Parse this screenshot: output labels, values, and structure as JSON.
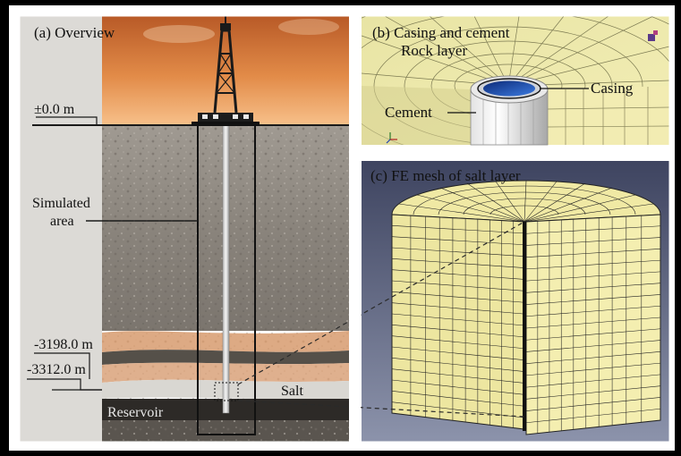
{
  "panels": {
    "a": {
      "title": "(a)  Overview",
      "depth_top": "±0.0 m",
      "simulated_area": [
        "Simulated",
        "area"
      ],
      "depth_salt_top": "-3198.0 m",
      "depth_salt_bottom": "-3312.0 m",
      "salt": "Salt",
      "reservoir": "Reservoir"
    },
    "b": {
      "title": "(b)  Casing and cement",
      "rock_layer": "Rock layer",
      "casing": "Casing",
      "cement": "Cement"
    },
    "c": {
      "title": "(c)  FE mesh of salt layer"
    }
  },
  "colors": {
    "sky_top": "#c0612d",
    "sky_bottom": "#f4b57a",
    "rock": "#8f8880",
    "salt_band": "#dca780",
    "reservoir": "#2c2926",
    "mesh_face": "#f1eaa2",
    "mesh_bg": "#59607c",
    "casing_blue": "#1b4fb0"
  }
}
